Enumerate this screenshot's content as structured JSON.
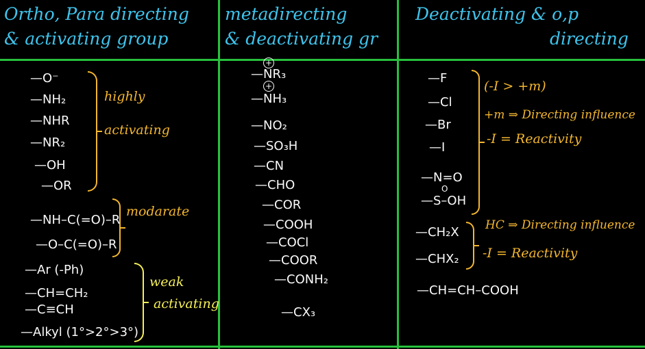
{
  "colors": {
    "board": "#000000",
    "grid": "#27c23c",
    "heading": "#3fc4ec",
    "chalk": "#fafafa",
    "amber": "#f4b730",
    "lemon": "#f6f05a"
  },
  "columns": [
    {
      "heading": [
        "Ortho, Para directing",
        "& activating group"
      ],
      "items": [
        "—O⁻",
        "—NH₂",
        "—NHR",
        "—NR₂",
        "—OH",
        "—OR",
        "—NH–C(=O)–R",
        "—O–C(=O)–R",
        "—Ar (-Ph)",
        "—CH=CH₂",
        "—C≡CH",
        "—Alkyl (1°>2°>3°)"
      ],
      "notes": {
        "highly": [
          "highly",
          "activating"
        ],
        "moderate": "modarate",
        "weak": [
          "weak",
          "activating"
        ]
      }
    },
    {
      "heading": [
        "metadirecting",
        "& deactivating gr"
      ],
      "items": [
        "—NR₃",
        "—NH₃",
        "—NO₂",
        "—SO₃H",
        "—CN",
        "—CHO",
        "—COR",
        "—COOH",
        "—COCl",
        "—COOR",
        "—CONH₂",
        "—CX₃"
      ],
      "charge_symbol": "+"
    },
    {
      "heading": [
        "Deactivating & o,p",
        "directing"
      ],
      "items": [
        "—F",
        "—Cl",
        "—Br",
        "—I",
        "—N=O",
        "—S–OH",
        "—CH₂X",
        "—CHX₂",
        "—CH=CH–COOH"
      ],
      "sulfur_mark": "O",
      "notes": {
        "halogen": [
          "(-I > +m)",
          "+m ⇒ Directing influence",
          "-I = Reactivity"
        ],
        "halomethyl": [
          "HC ⇒ Directing influence",
          "-I = Reactivity"
        ]
      }
    }
  ]
}
